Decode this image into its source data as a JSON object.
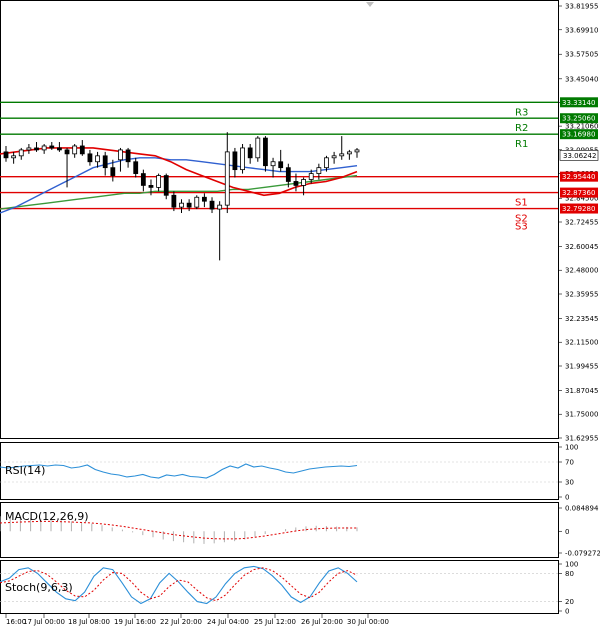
{
  "chart_data": {
    "type": "candlestick",
    "price_ticks": [
      "33.81955",
      "33.69910",
      "33.57505",
      "33.45040",
      "33.33075",
      "33.21060",
      "33.09055",
      "32.96950",
      "32.84500",
      "32.72455",
      "32.60045",
      "32.48000",
      "32.35955",
      "32.23545",
      "32.11500",
      "31.99455",
      "31.87045",
      "31.75000",
      "31.62955"
    ],
    "x_ticks": [
      "16:00",
      "17 Jul 00:00",
      "18 Jul 08:00",
      "19 Jul 16:00",
      "22 Jul 20:00",
      "24 Jul 04:00",
      "25 Jul 12:00",
      "26 Jul 20:00",
      "30 Jul 00:00"
    ],
    "current_price": "33.06242",
    "ylim": [
      31.62955,
      33.81955
    ],
    "levels": [
      {
        "name": "R3",
        "value": 33.3314,
        "label": "33.33140",
        "color": "#007a00"
      },
      {
        "name": "R2",
        "value": 33.2506,
        "label": "33.25060",
        "color": "#007a00"
      },
      {
        "name": "R1",
        "value": 33.1698,
        "label": "33.16980",
        "color": "#007a00"
      },
      {
        "name": "",
        "value": 32.9544,
        "label": "32.95440",
        "color": "#e00000"
      },
      {
        "name": "S1",
        "value": 32.8736,
        "label": "32.87360",
        "color": "#e00000"
      },
      {
        "name": "S2",
        "value": 32.7928,
        "label": "32.79280",
        "color": "#e00000"
      }
    ],
    "s3_name": "S3",
    "candles": [
      [
        33.08,
        33.11,
        33.03,
        33.05
      ],
      [
        33.05,
        33.08,
        33.02,
        33.06
      ],
      [
        33.06,
        33.1,
        33.04,
        33.09
      ],
      [
        33.09,
        33.12,
        33.07,
        33.1
      ],
      [
        33.1,
        33.13,
        33.08,
        33.09
      ],
      [
        33.09,
        33.12,
        33.07,
        33.11
      ],
      [
        33.11,
        33.13,
        33.09,
        33.1
      ],
      [
        33.1,
        33.13,
        33.08,
        33.09
      ],
      [
        33.09,
        33.1,
        32.9,
        33.07
      ],
      [
        33.07,
        33.12,
        33.05,
        33.11
      ],
      [
        33.11,
        33.14,
        33.06,
        33.07
      ],
      [
        33.07,
        33.09,
        33.01,
        33.03
      ],
      [
        33.03,
        33.08,
        33.0,
        33.06
      ],
      [
        33.06,
        33.08,
        32.96,
        33.0
      ],
      [
        33.0,
        33.04,
        32.93,
        32.96
      ],
      [
        33.04,
        33.1,
        32.98,
        33.09
      ],
      [
        33.09,
        33.1,
        33.0,
        33.03
      ],
      [
        33.03,
        33.05,
        32.95,
        32.97
      ],
      [
        32.97,
        32.99,
        32.88,
        32.91
      ],
      [
        32.91,
        32.94,
        32.86,
        32.9
      ],
      [
        32.9,
        32.97,
        32.88,
        32.96
      ],
      [
        32.96,
        32.97,
        32.84,
        32.86
      ],
      [
        32.86,
        32.88,
        32.78,
        32.8
      ],
      [
        32.8,
        32.84,
        32.77,
        32.82
      ],
      [
        32.82,
        32.84,
        32.78,
        32.8
      ],
      [
        32.8,
        32.86,
        32.79,
        32.85
      ],
      [
        32.85,
        32.87,
        32.8,
        32.83
      ],
      [
        32.83,
        32.85,
        32.77,
        32.79
      ],
      [
        32.79,
        32.83,
        32.53,
        32.81
      ],
      [
        32.81,
        33.18,
        32.77,
        33.08
      ],
      [
        33.08,
        33.1,
        32.95,
        32.99
      ],
      [
        32.99,
        33.12,
        32.97,
        33.1
      ],
      [
        33.1,
        33.12,
        33.02,
        33.05
      ],
      [
        33.05,
        33.16,
        33.03,
        33.15
      ],
      [
        33.15,
        33.16,
        32.98,
        33.01
      ],
      [
        33.01,
        33.05,
        32.95,
        33.03
      ],
      [
        33.03,
        33.09,
        32.98,
        33.0
      ],
      [
        33.0,
        33.02,
        32.9,
        32.93
      ],
      [
        32.93,
        32.97,
        32.88,
        32.91
      ],
      [
        32.91,
        32.95,
        32.86,
        32.94
      ],
      [
        32.94,
        32.99,
        32.92,
        32.97
      ],
      [
        32.97,
        33.02,
        32.94,
        33.0
      ],
      [
        33.0,
        33.06,
        32.98,
        33.05
      ],
      [
        33.05,
        33.08,
        33.02,
        33.06
      ],
      [
        33.06,
        33.16,
        33.04,
        33.07
      ],
      [
        33.07,
        33.09,
        33.04,
        33.08
      ],
      [
        33.08,
        33.1,
        33.05,
        33.09
      ]
    ],
    "ma_blue": [
      32.77,
      32.8,
      32.84,
      32.88,
      32.92,
      32.96,
      33.0,
      33.02,
      33.04,
      33.05,
      33.05,
      33.04,
      33.04,
      33.03,
      33.02,
      33.01,
      33.0,
      32.99,
      32.98,
      32.98,
      32.98,
      32.99,
      33.0,
      33.01
    ],
    "ma_red": [
      33.07,
      33.08,
      33.09,
      33.1,
      33.1,
      33.1,
      33.1,
      33.09,
      33.08,
      33.07,
      33.06,
      33.03,
      32.99,
      32.96,
      32.93,
      32.9,
      32.88,
      32.86,
      32.87,
      32.9,
      32.92,
      32.93,
      32.95,
      32.98
    ],
    "ma_green": [
      32.79,
      32.8,
      32.81,
      32.82,
      32.83,
      32.84,
      32.85,
      32.86,
      32.87,
      32.87,
      32.88,
      32.88,
      32.88,
      32.88,
      32.88,
      32.89,
      32.89,
      32.9,
      32.91,
      32.92,
      32.93,
      32.94,
      32.95,
      32.96
    ],
    "rsi": {
      "title": "RSI(14)",
      "ticks": [
        "100",
        "70",
        "30",
        "0"
      ],
      "values": [
        60,
        58,
        60,
        62,
        63,
        64,
        62,
        64,
        63,
        58,
        60,
        64,
        55,
        50,
        46,
        44,
        40,
        42,
        45,
        40,
        38,
        44,
        42,
        45,
        41,
        40,
        38,
        45,
        55,
        62,
        58,
        66,
        60,
        62,
        58,
        55,
        50,
        48,
        52,
        56,
        58,
        60,
        61,
        62,
        61,
        63
      ]
    },
    "macd": {
      "title": "MACD(12,26,9)",
      "ticks": [
        "0.084894",
        "0",
        "-0.079272"
      ],
      "hist": [
        0.055,
        0.052,
        0.05,
        0.048,
        0.046,
        0.044,
        0.04,
        0.036,
        0.032,
        0.028,
        0.022,
        0.014,
        0.006,
        -0.004,
        -0.014,
        -0.022,
        -0.03,
        -0.036,
        -0.04,
        -0.044,
        -0.046,
        -0.044,
        -0.04,
        -0.036,
        -0.03,
        -0.02,
        -0.01,
        0.0,
        0.008,
        0.014,
        0.018,
        0.02,
        0.019,
        0.017,
        0.016,
        0.014
      ],
      "signal": [
        0.03,
        0.032,
        0.034,
        0.035,
        0.036,
        0.036,
        0.035,
        0.034,
        0.032,
        0.03,
        0.027,
        0.023,
        0.018,
        0.012,
        0.006,
        0.0,
        -0.006,
        -0.012,
        -0.017,
        -0.021,
        -0.025,
        -0.027,
        -0.028,
        -0.028,
        -0.026,
        -0.022,
        -0.017,
        -0.011,
        -0.005,
        0.001,
        0.006,
        0.009,
        0.011,
        0.012,
        0.012,
        0.012
      ]
    },
    "stoch": {
      "title": "Stoch(9,6,3)",
      "ticks": [
        "100",
        "80",
        "20",
        "0"
      ],
      "k": [
        62,
        70,
        88,
        92,
        80,
        60,
        40,
        26,
        22,
        40,
        74,
        92,
        88,
        60,
        30,
        16,
        26,
        60,
        80,
        62,
        40,
        20,
        16,
        30,
        58,
        80,
        92,
        95,
        90,
        75,
        55,
        30,
        18,
        30,
        60,
        85,
        92,
        80,
        62
      ],
      "d": [
        60,
        64,
        74,
        84,
        86,
        78,
        62,
        44,
        32,
        30,
        44,
        66,
        82,
        80,
        62,
        40,
        26,
        32,
        52,
        66,
        62,
        44,
        28,
        22,
        34,
        56,
        76,
        88,
        92,
        86,
        72,
        54,
        36,
        28,
        40,
        62,
        80,
        86,
        76
      ]
    }
  }
}
